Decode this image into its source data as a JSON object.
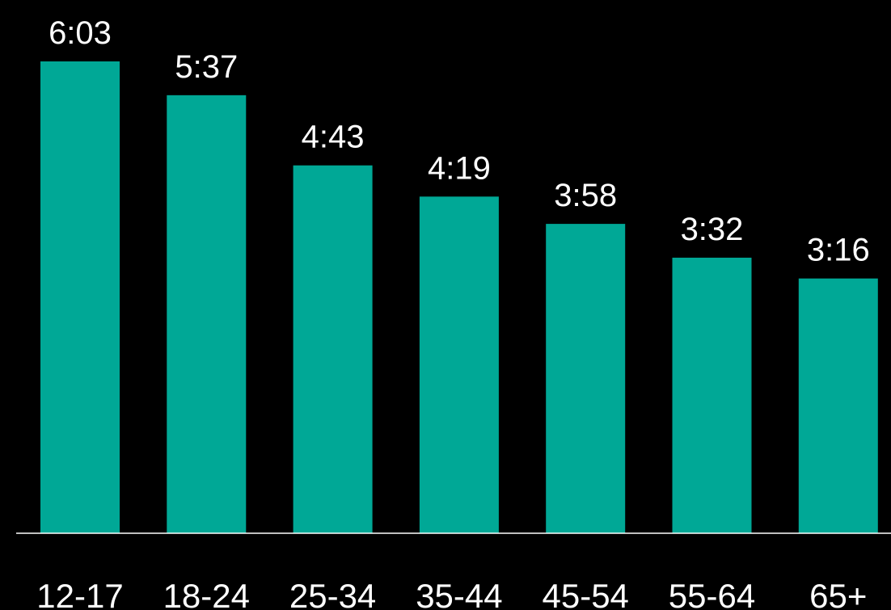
{
  "colors": {
    "background": "#000000",
    "bar": "#00a896",
    "axis": "#ffffff",
    "text": "#ffffff"
  },
  "chart_data": {
    "type": "bar",
    "categories": [
      "12-17",
      "18-24",
      "25-34",
      "35-44",
      "45-54",
      "55-64",
      "65+"
    ],
    "values": [
      363,
      337,
      283,
      259,
      238,
      212,
      196
    ],
    "value_labels": [
      "6:03",
      "5:37",
      "4:43",
      "4:19",
      "3:58",
      "3:32",
      "3:16"
    ],
    "title": "",
    "xlabel": "",
    "ylabel": "",
    "ylim": [
      0,
      363
    ],
    "grid": false,
    "legend": "none"
  }
}
